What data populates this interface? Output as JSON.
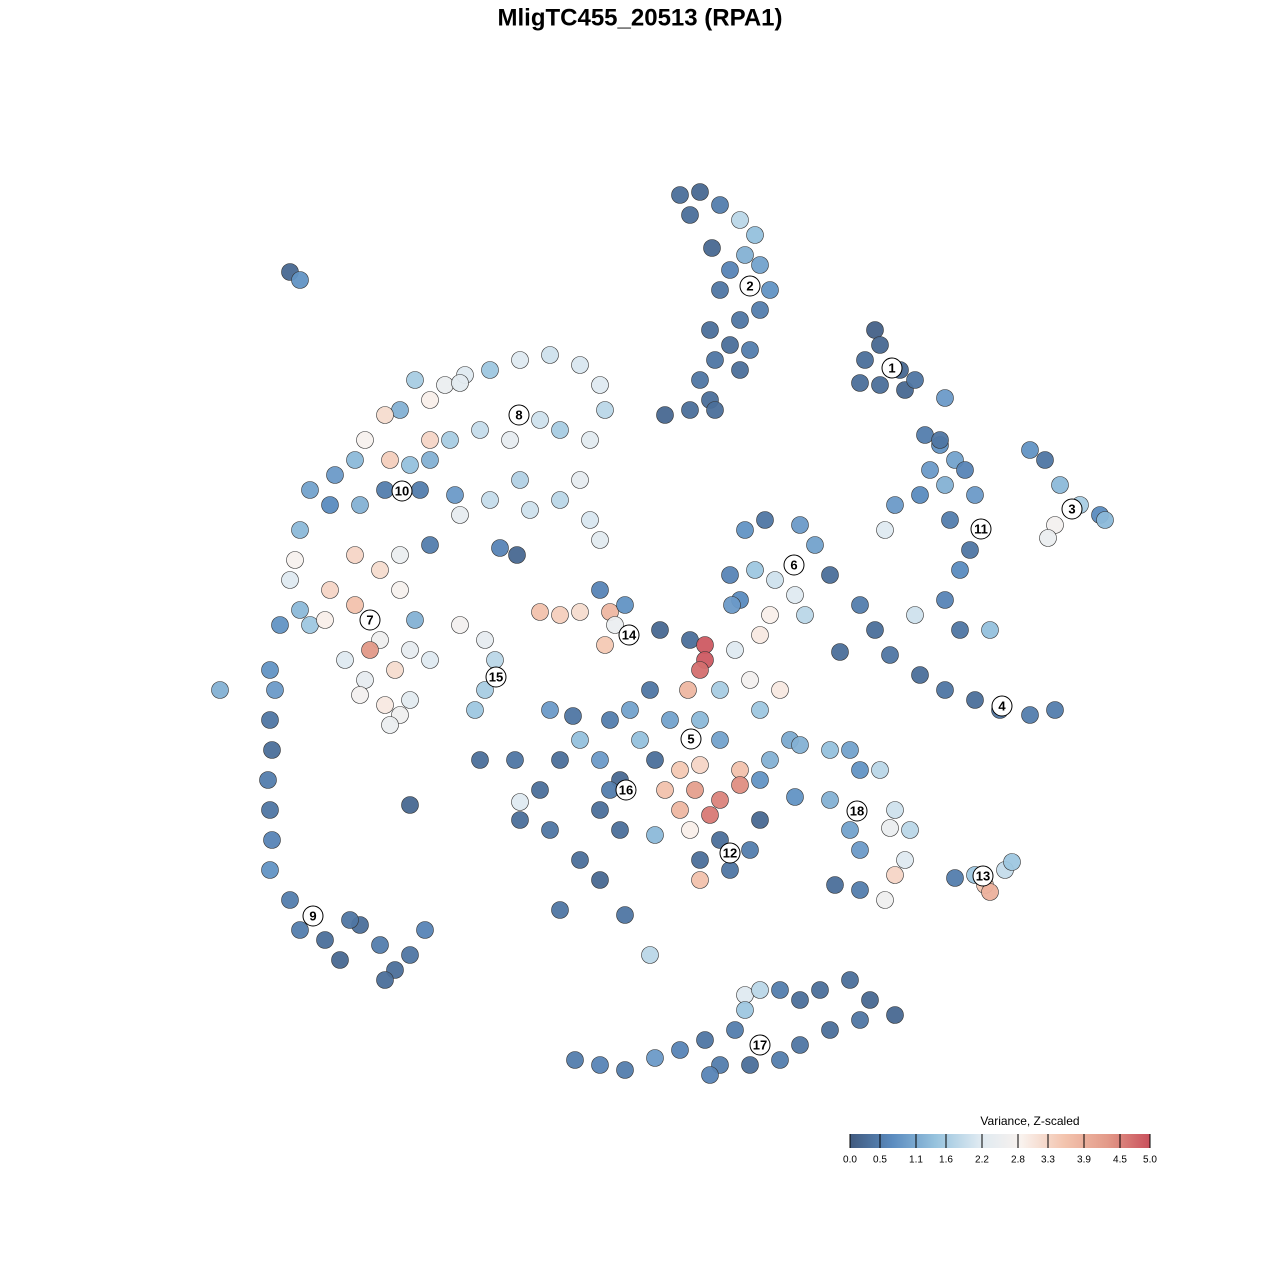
{
  "chart_data": {
    "type": "scatter",
    "title": "MligTC455_20513 (RPA1)",
    "xlim": [
      0,
      1280
    ],
    "ylim": [
      1280,
      0
    ],
    "x": [
      680,
      700,
      690,
      720,
      740,
      755,
      745,
      760,
      730,
      720,
      770,
      760,
      740,
      710,
      730,
      750,
      715,
      740,
      700,
      710,
      690,
      665,
      715,
      712,
      875,
      880,
      865,
      900,
      880,
      905,
      915,
      945,
      860,
      925,
      940,
      955,
      965,
      930,
      945,
      920,
      895,
      885,
      975,
      950,
      970,
      960,
      945,
      915,
      990,
      960,
      940,
      1030,
      1045,
      1060,
      1080,
      1100,
      1105,
      1055,
      1048,
      860,
      875,
      890,
      840,
      920,
      945,
      975,
      1000,
      1030,
      1055,
      745,
      765,
      800,
      815,
      755,
      775,
      795,
      740,
      730,
      830,
      805,
      770,
      760,
      732,
      400,
      430,
      445,
      465,
      490,
      520,
      550,
      580,
      600,
      605,
      590,
      560,
      540,
      510,
      480,
      450,
      430,
      410,
      385,
      365,
      355,
      335,
      310,
      330,
      360,
      385,
      420,
      455,
      490,
      530,
      560,
      590,
      600,
      580,
      520,
      460,
      430,
      500,
      517,
      390,
      415,
      460,
      430,
      300,
      295,
      290,
      300,
      280,
      310,
      330,
      355,
      355,
      380,
      400,
      400,
      415,
      380,
      370,
      345,
      365,
      395,
      410,
      430,
      385,
      400,
      390,
      360,
      410,
      325,
      460,
      485,
      495,
      485,
      475,
      290,
      300,
      220,
      270,
      275,
      270,
      272,
      268,
      270,
      272,
      270,
      290,
      300,
      325,
      340,
      360,
      380,
      395,
      410,
      425,
      385,
      350,
      540,
      560,
      580,
      600,
      610,
      625,
      605,
      615,
      660,
      690,
      705,
      705,
      700,
      735,
      750,
      720,
      688,
      650,
      630,
      610,
      640,
      670,
      700,
      720,
      760,
      780,
      790,
      770,
      740,
      740,
      720,
      710,
      680,
      665,
      695,
      700,
      655,
      600,
      580,
      560,
      540,
      520,
      550,
      600,
      620,
      580,
      600,
      560,
      625,
      650,
      700,
      720,
      750,
      760,
      700,
      690,
      680,
      480,
      515,
      410,
      520,
      550,
      573,
      760,
      795,
      655,
      730,
      620,
      610,
      800,
      830,
      850,
      860,
      880,
      830,
      850,
      860,
      835,
      860,
      885,
      895,
      905,
      910,
      895,
      890,
      955,
      975,
      985,
      990,
      1005,
      1012,
      575,
      600,
      625,
      655,
      680,
      705,
      720,
      735,
      745,
      760,
      780,
      800,
      820,
      850,
      870,
      895,
      860,
      830,
      800,
      780,
      750,
      710,
      745
    ],
    "y": [
      195,
      192,
      215,
      205,
      220,
      235,
      255,
      265,
      270,
      290,
      290,
      310,
      320,
      330,
      345,
      350,
      360,
      370,
      380,
      400,
      410,
      415,
      410,
      248,
      330,
      345,
      360,
      370,
      385,
      390,
      380,
      398,
      383,
      435,
      445,
      460,
      470,
      470,
      485,
      495,
      505,
      530,
      495,
      520,
      550,
      570,
      600,
      615,
      630,
      630,
      440,
      450,
      460,
      485,
      505,
      515,
      520,
      525,
      538,
      605,
      630,
      655,
      652,
      675,
      690,
      700,
      710,
      715,
      710,
      530,
      520,
      525,
      545,
      570,
      580,
      595,
      600,
      575,
      575,
      615,
      615,
      635,
      605,
      410,
      400,
      385,
      375,
      370,
      360,
      355,
      365,
      385,
      410,
      440,
      430,
      420,
      440,
      430,
      440,
      460,
      465,
      415,
      440,
      460,
      475,
      490,
      505,
      505,
      490,
      490,
      495,
      500,
      510,
      500,
      520,
      540,
      480,
      480,
      515,
      545,
      548,
      555,
      460,
      380,
      383,
      440,
      530,
      560,
      580,
      610,
      625,
      625,
      590,
      605,
      555,
      570,
      555,
      590,
      620,
      640,
      650,
      660,
      680,
      670,
      650,
      660,
      705,
      715,
      725,
      695,
      700,
      620,
      625,
      640,
      660,
      690,
      710,
      272,
      280,
      690,
      670,
      690,
      720,
      750,
      780,
      810,
      840,
      870,
      900,
      930,
      940,
      960,
      925,
      945,
      970,
      955,
      930,
      980,
      920,
      612,
      615,
      612,
      590,
      612,
      605,
      645,
      625,
      630,
      640,
      645,
      660,
      670,
      650,
      680,
      690,
      690,
      690,
      710,
      720,
      740,
      720,
      720,
      740,
      710,
      690,
      740,
      760,
      770,
      785,
      800,
      815,
      810,
      790,
      790,
      765,
      760,
      760,
      740,
      760,
      790,
      820,
      830,
      810,
      830,
      860,
      880,
      910,
      915,
      955,
      860,
      840,
      850,
      820,
      880,
      830,
      770,
      760,
      760,
      805,
      802,
      710,
      716,
      780,
      797,
      835,
      870,
      780,
      790,
      745,
      750,
      750,
      770,
      770,
      800,
      830,
      850,
      885,
      890,
      900,
      875,
      860,
      830,
      810,
      828,
      878,
      875,
      885,
      892,
      870,
      862,
      1060,
      1065,
      1070,
      1058,
      1050,
      1040,
      1065,
      1030,
      995,
      990,
      990,
      1000,
      990,
      980,
      1000,
      1015,
      1020,
      1030,
      1045,
      1060,
      1065,
      1075,
      1010
    ],
    "values": [
      0.3,
      0.2,
      0.3,
      0.5,
      1.8,
      1.4,
      1.2,
      1.0,
      0.6,
      0.4,
      0.8,
      0.5,
      0.4,
      0.3,
      0.3,
      0.5,
      0.4,
      0.3,
      0.4,
      0.3,
      0.3,
      0.2,
      0.3,
      0.2,
      0.1,
      0.2,
      0.3,
      0.2,
      0.3,
      0.2,
      0.4,
      0.9,
      0.3,
      0.5,
      0.8,
      1.0,
      0.6,
      0.9,
      1.2,
      0.7,
      0.9,
      2.2,
      0.9,
      0.5,
      0.4,
      0.7,
      0.6,
      2.0,
      1.4,
      0.4,
      0.4,
      0.8,
      0.4,
      1.3,
      1.6,
      0.7,
      1.3,
      2.7,
      2.5,
      0.5,
      0.3,
      0.4,
      0.3,
      0.3,
      0.4,
      0.3,
      0.4,
      0.5,
      0.5,
      0.8,
      0.4,
      0.9,
      1.0,
      1.5,
      2.0,
      2.2,
      0.7,
      0.6,
      0.3,
      1.8,
      2.9,
      3.0,
      0.9,
      1.2,
      2.9,
      2.5,
      2.2,
      1.5,
      2.2,
      2.0,
      2.1,
      2.2,
      1.8,
      2.3,
      1.6,
      2.0,
      2.4,
      1.9,
      1.6,
      1.2,
      1.4,
      3.2,
      2.8,
      1.3,
      0.9,
      1.0,
      0.7,
      1.2,
      0.5,
      0.5,
      0.9,
      1.9,
      2.0,
      1.8,
      2.1,
      2.3,
      2.4,
      1.7,
      2.4,
      0.5,
      0.6,
      0.2,
      3.4,
      1.6,
      2.3,
      3.3,
      1.3,
      2.8,
      2.2,
      1.3,
      0.8,
      1.5,
      3.3,
      3.6,
      3.3,
      3.2,
      2.5,
      2.8,
      1.2,
      2.6,
      4.3,
      2.2,
      2.4,
      3.2,
      2.4,
      2.2,
      3.0,
      2.6,
      2.5,
      2.7,
      2.3,
      2.9,
      2.7,
      2.4,
      1.8,
      1.6,
      1.5,
      0.2,
      0.8,
      1.2,
      0.8,
      0.9,
      0.4,
      0.3,
      0.5,
      0.4,
      0.6,
      0.8,
      0.5,
      0.5,
      0.3,
      0.2,
      0.3,
      0.5,
      0.3,
      0.4,
      0.6,
      0.3,
      0.4,
      3.6,
      3.4,
      3.2,
      0.6,
      3.8,
      0.8,
      3.5,
      2.5,
      0.2,
      0.3,
      4.9,
      4.9,
      4.7,
      2.2,
      2.7,
      1.6,
      3.8,
      0.4,
      1.0,
      0.5,
      1.4,
      1.0,
      1.3,
      1.0,
      1.5,
      3.0,
      1.1,
      1.2,
      3.6,
      4.4,
      4.5,
      4.6,
      3.8,
      3.6,
      4.2,
      3.3,
      0.3,
      0.9,
      1.4,
      0.3,
      0.3,
      0.3,
      0.4,
      0.3,
      0.3,
      0.3,
      0.2,
      0.4,
      0.4,
      1.8,
      0.3,
      0.3,
      0.5,
      0.2,
      3.6,
      2.9,
      3.5,
      0.3,
      0.4,
      0.2,
      2.2,
      0.9,
      0.4,
      0.8,
      0.8,
      1.3,
      0.4,
      0.2,
      0.5,
      1.2,
      1.4,
      1.0,
      0.8,
      1.8,
      1.2,
      1.0,
      0.9,
      0.3,
      0.5,
      2.6,
      3.3,
      2.2,
      1.8,
      2.0,
      2.5,
      0.5,
      1.5,
      3.5,
      3.9,
      1.9,
      1.5,
      0.5,
      0.6,
      0.5,
      0.9,
      0.6,
      0.4,
      0.5,
      0.5,
      2.2,
      1.8,
      0.5,
      0.3,
      0.3,
      0.3,
      0.2,
      0.2,
      0.4,
      0.3,
      0.4,
      0.5,
      0.3,
      0.6,
      1.5
    ],
    "annotations": [
      {
        "text": "1",
        "x": 892,
        "y": 368
      },
      {
        "text": "2",
        "x": 750,
        "y": 286
      },
      {
        "text": "3",
        "x": 1072,
        "y": 509
      },
      {
        "text": "4",
        "x": 1002,
        "y": 706
      },
      {
        "text": "5",
        "x": 691,
        "y": 739
      },
      {
        "text": "6",
        "x": 794,
        "y": 565
      },
      {
        "text": "7",
        "x": 370,
        "y": 620
      },
      {
        "text": "8",
        "x": 519,
        "y": 415
      },
      {
        "text": "9",
        "x": 313,
        "y": 916
      },
      {
        "text": "10",
        "x": 402,
        "y": 491
      },
      {
        "text": "11",
        "x": 981,
        "y": 529
      },
      {
        "text": "12",
        "x": 730,
        "y": 853
      },
      {
        "text": "13",
        "x": 983,
        "y": 876
      },
      {
        "text": "14",
        "x": 629,
        "y": 635
      },
      {
        "text": "15",
        "x": 496,
        "y": 677
      },
      {
        "text": "16",
        "x": 626,
        "y": 790
      },
      {
        "text": "17",
        "x": 760,
        "y": 1045
      },
      {
        "text": "18",
        "x": 857,
        "y": 811
      }
    ],
    "colorbar": {
      "title": "Variance, Z-scaled",
      "clim": [
        0,
        5
      ],
      "ticks": [
        {
          "value": 0,
          "label": "0.0"
        },
        0.5,
        1.1,
        1.6,
        2.2,
        2.8,
        3.3,
        3.9,
        4.5,
        {
          "value": 5,
          "label": "5.0"
        }
      ],
      "colormap": [
        "#405a7f",
        "#5b8cc0",
        "#97c3de",
        "#dde9f1",
        "#f9f2ee",
        "#f3c4ae",
        "#e39a89",
        "#c9505c"
      ]
    }
  }
}
